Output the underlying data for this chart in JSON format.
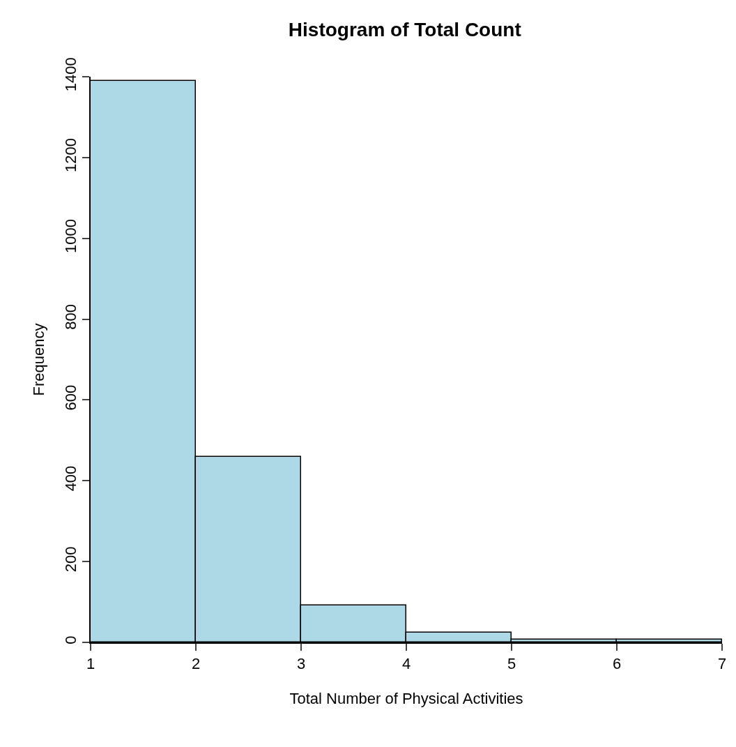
{
  "chart_data": {
    "type": "histogram",
    "title": "Histogram of Total Count",
    "xlabel": "Total Number of Physical Activities",
    "ylabel": "Frequency",
    "bins": [
      1,
      2,
      3,
      4,
      5,
      6,
      7
    ],
    "values": [
      1390,
      460,
      92,
      25,
      7,
      7
    ],
    "color": "#add8e6",
    "xlim": [
      1,
      7
    ],
    "xticks": [
      1,
      2,
      3,
      4,
      5,
      6,
      7
    ],
    "ylim": [
      0,
      1400
    ],
    "yticks": [
      0,
      200,
      400,
      600,
      800,
      1000,
      1200,
      1400
    ]
  }
}
